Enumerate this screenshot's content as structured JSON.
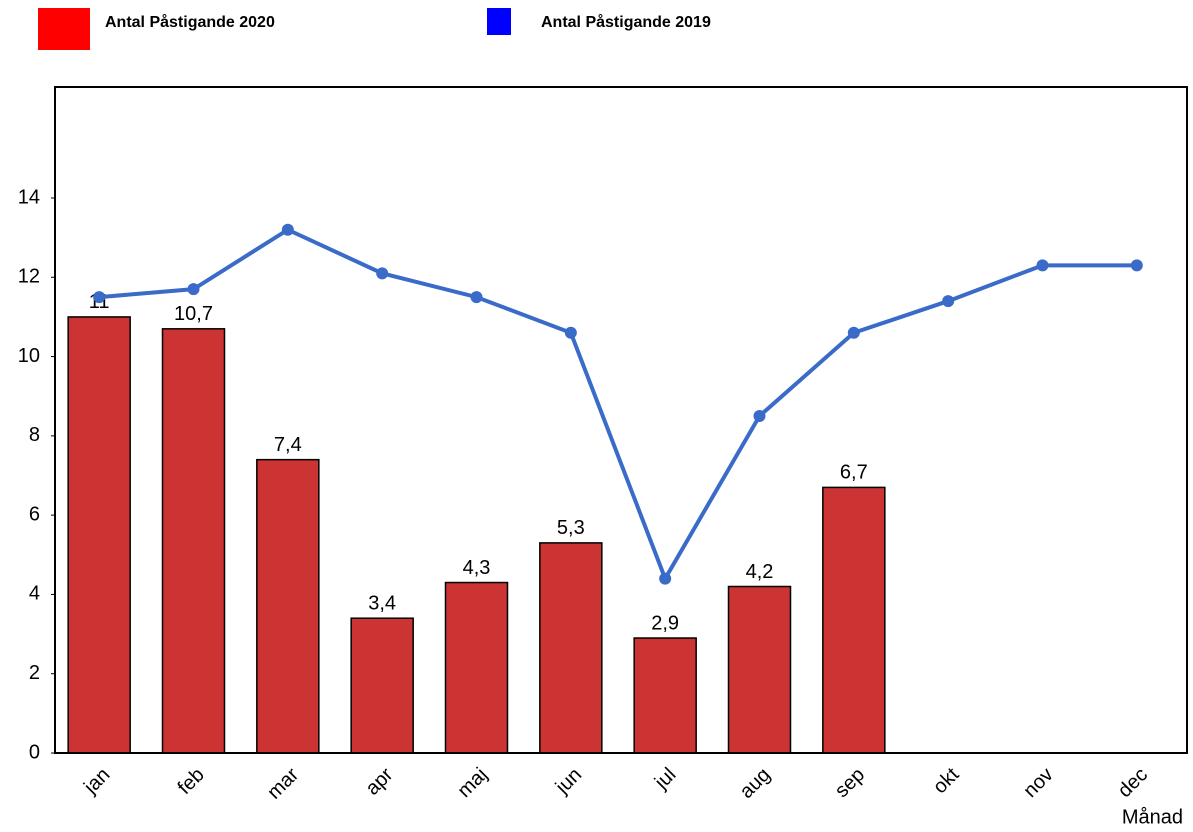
{
  "chart_data": {
    "type": "bar",
    "categories": [
      "jan",
      "feb",
      "mar",
      "apr",
      "maj",
      "jun",
      "jul",
      "aug",
      "sep",
      "okt",
      "nov",
      "dec"
    ],
    "x_label": "Månad",
    "series": [
      {
        "name": "Antal Påstigande 2020",
        "type": "bar",
        "color": "#cc3333",
        "legend_color": "#ff0000",
        "values": [
          11,
          10.7,
          7.4,
          3.4,
          4.3,
          5.3,
          2.9,
          4.2,
          6.7,
          null,
          null,
          null
        ],
        "value_labels": [
          "11",
          "10,7",
          "7,4",
          "3,4",
          "4,3",
          "5,3",
          "2,9",
          "4,2",
          "6,7",
          null,
          null,
          null
        ]
      },
      {
        "name": "Antal Påstigande 2019",
        "type": "line",
        "color": "#3a6bc8",
        "legend_color": "#0000ff",
        "values": [
          11.5,
          11.7,
          13.2,
          12.1,
          11.5,
          10.6,
          4.4,
          8.5,
          10.6,
          11.4,
          12.3,
          12.3
        ]
      }
    ],
    "ylim": [
      0,
      16.8
    ],
    "yticks": [
      0,
      2,
      4,
      6,
      8,
      10,
      12,
      14
    ],
    "grid": false
  }
}
